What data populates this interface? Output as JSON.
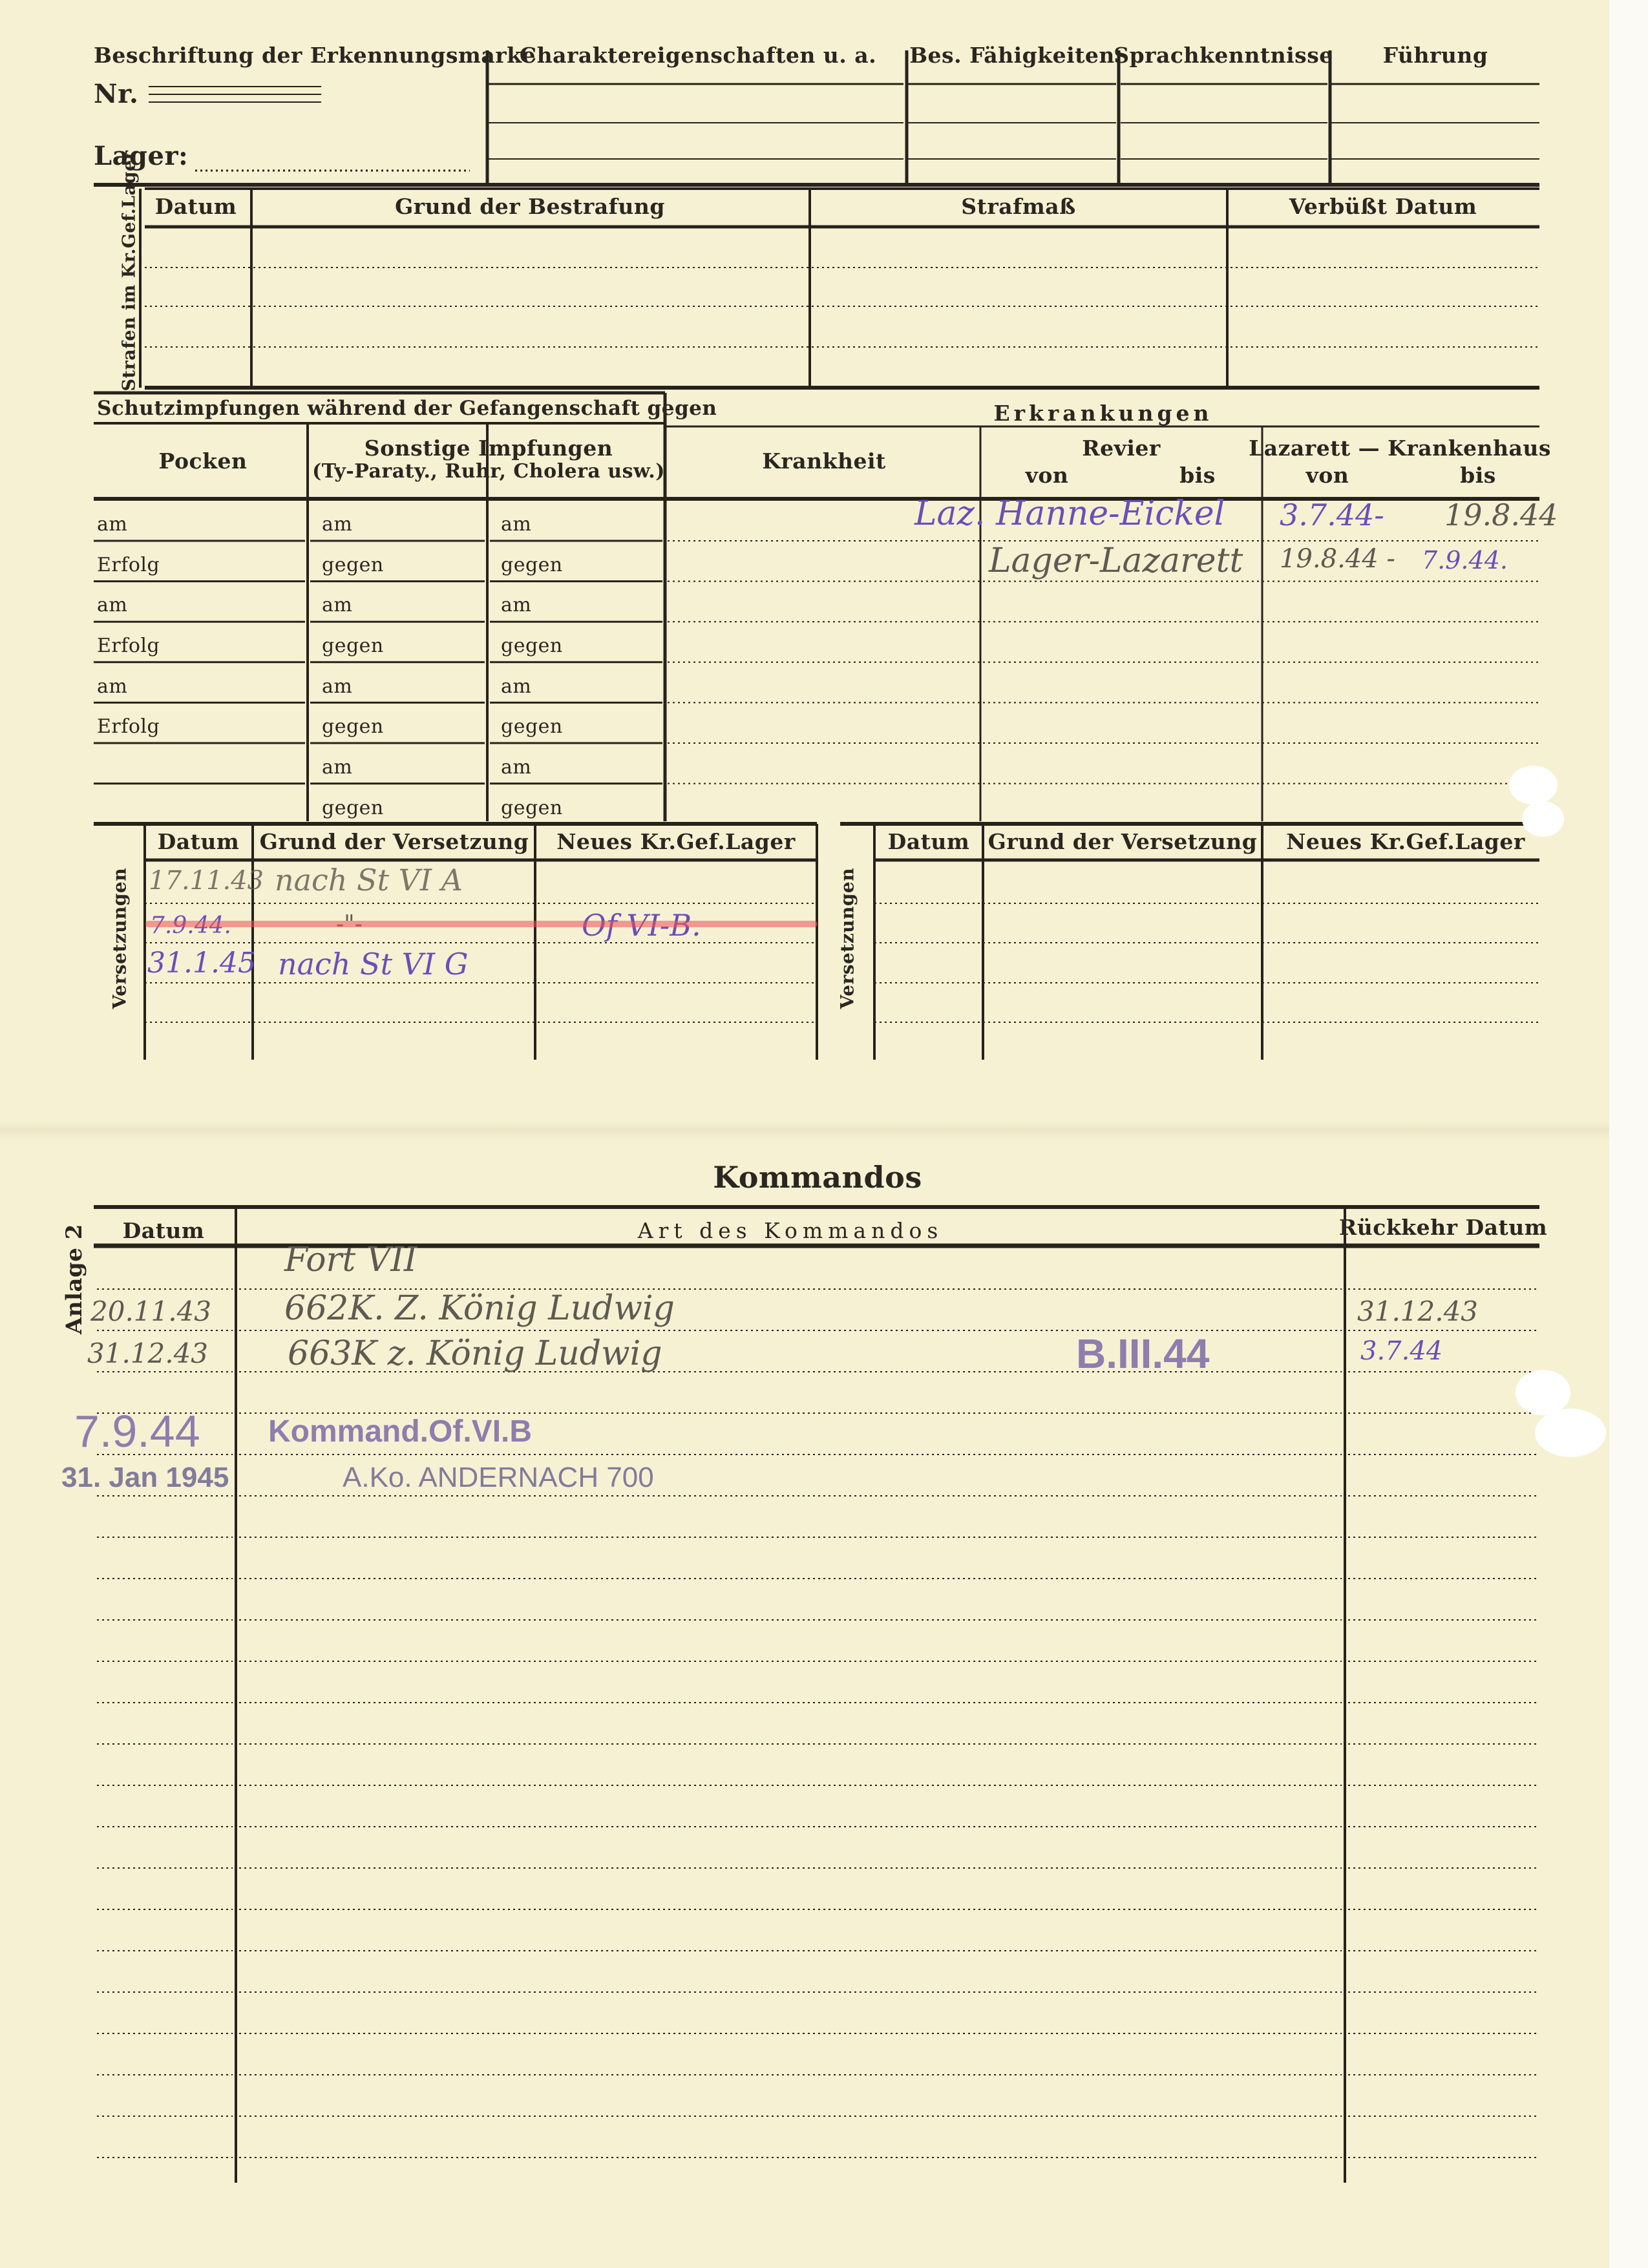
{
  "header": {
    "erkennungsmarke": "Beschriftung der Erkennungsmarke",
    "nr": "Nr.",
    "lager": "Lager:",
    "charakter": "Charaktereigenschaften u. a.",
    "faehigkeiten": "Bes. Fähigkeiten",
    "sprachen": "Sprachkenntnisse",
    "fuehrung": "Führung"
  },
  "strafen": {
    "side_label": "Strafen im Kr.Gef.Lager",
    "columns": [
      "Datum",
      "Grund der Bestrafung",
      "Strafmaß",
      "Verbüßt Datum"
    ]
  },
  "impfungen": {
    "title": "Schutzimpfungen während der Gefangenschaft gegen",
    "pocken": "Pocken",
    "sonstige": "Sonstige Impfungen",
    "sonstige_sub": "(Ty-Paraty., Ruhr, Cholera usw.)",
    "col1": [
      "am",
      "Erfolg",
      "am",
      "Erfolg",
      "am",
      "Erfolg",
      "",
      ""
    ],
    "col2": [
      "am",
      "gegen",
      "am",
      "gegen",
      "am",
      "gegen",
      "am",
      "gegen"
    ],
    "col3": [
      "am",
      "gegen",
      "am",
      "gegen",
      "am",
      "gegen",
      "am",
      "gegen"
    ]
  },
  "erkrankungen": {
    "title": "Erkrankungen",
    "krankheit": "Krankheit",
    "revier": "Revier",
    "lazarett": "Lazarett — Krankenhaus",
    "von": "von",
    "bis": "bis",
    "entries": [
      {
        "place": "Laz. Hanne-Eickel",
        "von": "3.7.44-",
        "bis": "19.8.44"
      },
      {
        "place": "Lager-Lazarett",
        "von": "19.8.44 -",
        "bis": "7.9.44."
      }
    ]
  },
  "versetzungen": {
    "side_label": "Versetzungen",
    "columns": [
      "Datum",
      "Grund der Versetzung",
      "Neues Kr.Gef.Lager"
    ],
    "entries": [
      {
        "datum": "17.11.43",
        "grund": "nach St VI A",
        "lager": ""
      },
      {
        "datum": "7.9.44.",
        "grund": "-\"-",
        "lager": "Of VI-B.",
        "struck": true
      },
      {
        "datum": "31.1.45",
        "grund": "nach St VI G",
        "lager": ""
      }
    ]
  },
  "kommandos": {
    "title": "Kommandos",
    "side_label": "Anlage 2",
    "columns": [
      "Datum",
      "Art des Kommandos",
      "Rückkehr Datum"
    ],
    "entries": [
      {
        "datum": "20.11.43",
        "art_above": "Fort VII",
        "art": "662K. Z. König Ludwig",
        "rueckkehr": "31.12.43"
      },
      {
        "datum": "31.12.43",
        "art": "663K z. König Ludwig",
        "stamp": "B.III.44",
        "rueckkehr": "3.7.44"
      }
    ],
    "stamp1_date": "7.9.44",
    "stamp1_text": "Kommand.Of.VI.B",
    "stamp2_date": "31. Jan 1945",
    "stamp2_text": "A.Ko. ANDERNACH 700"
  }
}
